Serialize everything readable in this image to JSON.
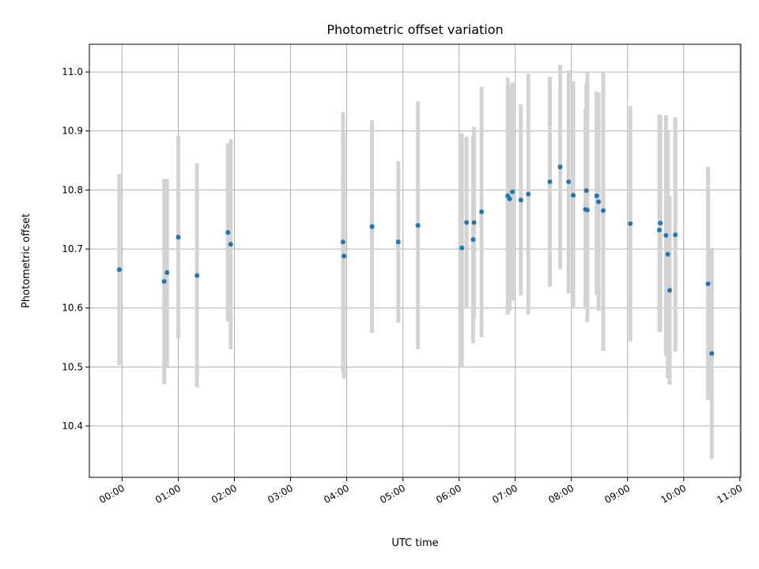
{
  "chart_data": {
    "type": "scatter",
    "title": "Photometric offset variation",
    "xlabel": "UTC time",
    "ylabel": "Photometric offset",
    "x_tick_labels": [
      "00:00",
      "01:00",
      "02:00",
      "03:00",
      "04:00",
      "05:00",
      "06:00",
      "07:00",
      "08:00",
      "09:00",
      "10:00",
      "11:00"
    ],
    "y_tick_labels": [
      "10.4",
      "10.5",
      "10.6",
      "10.7",
      "10.8",
      "10.9",
      "11.0"
    ],
    "xlim": [
      "-0:35",
      "11:01"
    ],
    "ylim": [
      10.313,
      11.047
    ],
    "grid": true,
    "legend": "none",
    "colors": {
      "points": "#1f77b4",
      "errorbars": "#d3d3d3",
      "grid": "#b0b0b0"
    },
    "series": [
      {
        "points": [
          {
            "time": "-0:03",
            "y": 10.665,
            "ylow": 10.503,
            "yhigh": 10.827
          },
          {
            "time": "0:45",
            "y": 10.645,
            "ylow": 10.471,
            "yhigh": 10.819
          },
          {
            "time": "0:48",
            "y": 10.66,
            "ylow": 10.501,
            "yhigh": 10.819
          },
          {
            "time": "1:00",
            "y": 10.72,
            "ylow": 10.548,
            "yhigh": 10.892
          },
          {
            "time": "1:20",
            "y": 10.655,
            "ylow": 10.465,
            "yhigh": 10.845
          },
          {
            "time": "1:53",
            "y": 10.728,
            "ylow": 10.577,
            "yhigh": 10.879
          },
          {
            "time": "1:56",
            "y": 10.708,
            "ylow": 10.53,
            "yhigh": 10.886
          },
          {
            "time": "3:56",
            "y": 10.712,
            "ylow": 10.492,
            "yhigh": 10.932
          },
          {
            "time": "3:57",
            "y": 10.688,
            "ylow": 10.48,
            "yhigh": 10.896
          },
          {
            "time": "4:27",
            "y": 10.738,
            "ylow": 10.558,
            "yhigh": 10.918
          },
          {
            "time": "4:55",
            "y": 10.712,
            "ylow": 10.575,
            "yhigh": 10.849
          },
          {
            "time": "5:16",
            "y": 10.74,
            "ylow": 10.53,
            "yhigh": 10.95
          },
          {
            "time": "6:03",
            "y": 10.702,
            "ylow": 10.5,
            "yhigh": 10.896
          },
          {
            "time": "6:08",
            "y": 10.745,
            "ylow": 10.6,
            "yhigh": 10.89
          },
          {
            "time": "6:15",
            "y": 10.716,
            "ylow": 10.54,
            "yhigh": 10.892
          },
          {
            "time": "6:16",
            "y": 10.745,
            "ylow": 10.583,
            "yhigh": 10.907
          },
          {
            "time": "6:24",
            "y": 10.763,
            "ylow": 10.55,
            "yhigh": 10.975
          },
          {
            "time": "6:52",
            "y": 10.79,
            "ylow": 10.589,
            "yhigh": 10.991
          },
          {
            "time": "6:54",
            "y": 10.785,
            "ylow": 10.595,
            "yhigh": 10.975
          },
          {
            "time": "6:57",
            "y": 10.797,
            "ylow": 10.612,
            "yhigh": 10.982
          },
          {
            "time": "7:06",
            "y": 10.783,
            "ylow": 10.621,
            "yhigh": 10.945
          },
          {
            "time": "7:14",
            "y": 10.793,
            "ylow": 10.589,
            "yhigh": 10.997
          },
          {
            "time": "7:37",
            "y": 10.814,
            "ylow": 10.636,
            "yhigh": 10.992
          },
          {
            "time": "7:48",
            "y": 10.839,
            "ylow": 10.666,
            "yhigh": 11.012
          },
          {
            "time": "7:57",
            "y": 10.814,
            "ylow": 10.625,
            "yhigh": 11.003
          },
          {
            "time": "8:02",
            "y": 10.791,
            "ylow": 10.599,
            "yhigh": 10.984
          },
          {
            "time": "8:15",
            "y": 10.767,
            "ylow": 10.599,
            "yhigh": 10.937
          },
          {
            "time": "8:16",
            "y": 10.799,
            "ylow": 10.619,
            "yhigh": 10.979
          },
          {
            "time": "8:17",
            "y": 10.766,
            "ylow": 10.576,
            "yhigh": 10.999
          },
          {
            "time": "8:27",
            "y": 10.79,
            "ylow": 10.622,
            "yhigh": 10.967
          },
          {
            "time": "8:29",
            "y": 10.78,
            "ylow": 10.595,
            "yhigh": 10.965
          },
          {
            "time": "8:34",
            "y": 10.765,
            "ylow": 10.527,
            "yhigh": 11.0
          },
          {
            "time": "9:03",
            "y": 10.743,
            "ylow": 10.543,
            "yhigh": 10.942
          },
          {
            "time": "9:34",
            "y": 10.732,
            "ylow": 10.559,
            "yhigh": 10.928
          },
          {
            "time": "9:35",
            "y": 10.744,
            "ylow": 10.56,
            "yhigh": 10.926
          },
          {
            "time": "9:41",
            "y": 10.723,
            "ylow": 10.519,
            "yhigh": 10.927
          },
          {
            "time": "9:43",
            "y": 10.691,
            "ylow": 10.481,
            "yhigh": 10.902
          },
          {
            "time": "9:45",
            "y": 10.63,
            "ylow": 10.47,
            "yhigh": 10.79
          },
          {
            "time": "9:51",
            "y": 10.724,
            "ylow": 10.526,
            "yhigh": 10.923
          },
          {
            "time": "10:26",
            "y": 10.641,
            "ylow": 10.444,
            "yhigh": 10.839
          },
          {
            "time": "10:30",
            "y": 10.523,
            "ylow": 10.344,
            "yhigh": 10.702
          }
        ]
      }
    ]
  }
}
